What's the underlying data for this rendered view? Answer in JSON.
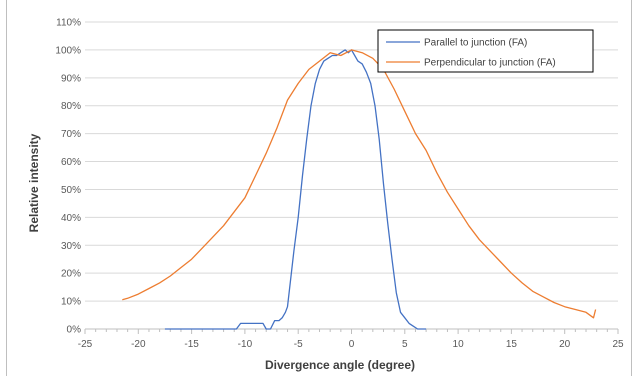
{
  "chart_data": {
    "type": "line",
    "title": "",
    "xlabel": "Divergence angle (degree)",
    "ylabel": "Relative intensity",
    "xlim": [
      -25,
      25
    ],
    "ylim": [
      0,
      110
    ],
    "x_ticks": [
      -25,
      -20,
      -15,
      -10,
      -5,
      0,
      5,
      10,
      15,
      20,
      25
    ],
    "y_ticks": [
      0,
      10,
      20,
      30,
      40,
      50,
      60,
      70,
      80,
      90,
      100,
      110
    ],
    "y_tick_labels": [
      "0%",
      "10%",
      "20%",
      "30%",
      "40%",
      "50%",
      "60%",
      "70%",
      "80%",
      "90%",
      "100%",
      "110%"
    ],
    "grid": "horizontal",
    "legend_position": "top-right",
    "series": [
      {
        "name": "Parallel to junction (FA)",
        "color": "#4472C4",
        "x": [
          -17.5,
          -16,
          -14,
          -12,
          -10.8,
          -10.4,
          -10,
          -9,
          -8.3,
          -8.0,
          -7.6,
          -7.2,
          -6.8,
          -6.5,
          -6.2,
          -6.0,
          -5.7,
          -5.4,
          -5.0,
          -4.6,
          -4.2,
          -3.8,
          -3.4,
          -3.0,
          -2.6,
          -2.2,
          -1.8,
          -1.4,
          -1.0,
          -0.6,
          -0.3,
          0.0,
          0.3,
          0.6,
          1.0,
          1.4,
          1.8,
          2.2,
          2.6,
          3.0,
          3.4,
          3.8,
          4.2,
          4.6,
          5.0,
          5.4,
          5.8,
          6.2,
          6.6,
          7.0
        ],
        "y": [
          0,
          0,
          0,
          0,
          0,
          2,
          2,
          2,
          2,
          0,
          0,
          3,
          3,
          4,
          6,
          8,
          18,
          28,
          40,
          55,
          68,
          80,
          88,
          93,
          96,
          97,
          98,
          98,
          99,
          100,
          99,
          100,
          98,
          96,
          95,
          92,
          88,
          80,
          68,
          52,
          38,
          25,
          13,
          6,
          4,
          2,
          1,
          0,
          0,
          0
        ]
      },
      {
        "name": "Perpendicular to junction (FA)",
        "color": "#ED7D31",
        "x": [
          -21.5,
          -21,
          -20,
          -19,
          -18,
          -17,
          -16,
          -15,
          -14,
          -13,
          -12,
          -11,
          -10,
          -9,
          -8,
          -7,
          -6,
          -5,
          -4,
          -3,
          -2,
          -1,
          0,
          1,
          2,
          3,
          4,
          5,
          6,
          7,
          8,
          9,
          10,
          11,
          12,
          13,
          14,
          15,
          16,
          17,
          18,
          19,
          20,
          21,
          22,
          22.7,
          22.9
        ],
        "y": [
          10.5,
          11,
          12.5,
          14.5,
          16.5,
          19,
          22,
          25,
          29,
          33,
          37,
          42,
          47,
          55,
          63,
          72,
          82,
          88,
          93,
          96,
          99,
          98,
          100,
          99,
          97,
          93,
          86,
          78,
          70,
          64,
          56,
          49,
          43,
          37,
          32,
          28,
          24,
          20,
          16.5,
          13.5,
          11.5,
          9.5,
          8,
          7,
          6,
          4,
          7
        ]
      }
    ]
  }
}
